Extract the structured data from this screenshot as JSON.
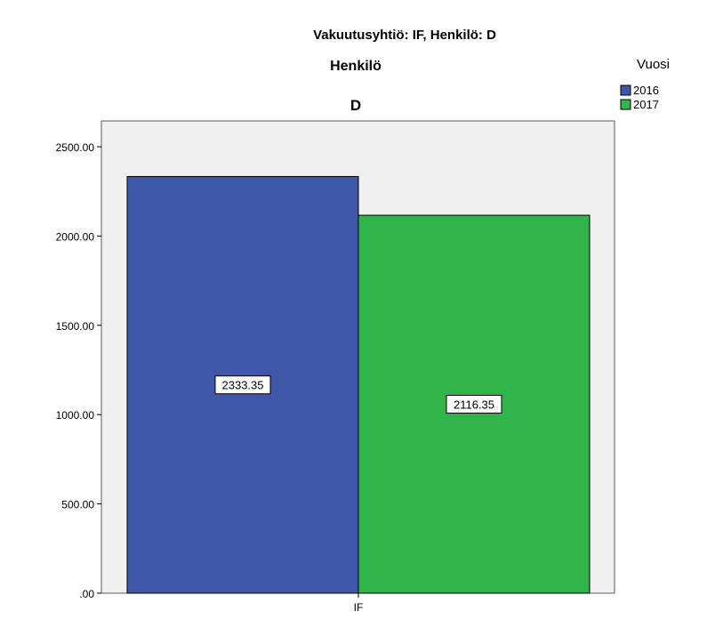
{
  "chart_data": {
    "type": "bar",
    "title": "Vakuutusyhtiö: IF, Henkilö: D",
    "subtitle": "Henkilö",
    "panel_label": "D",
    "categories": [
      "IF"
    ],
    "series": [
      {
        "name": "2016",
        "values": [
          2333.35
        ],
        "color": "#3f57a8"
      },
      {
        "name": "2017",
        "values": [
          2116.35
        ],
        "color": "#31b54a"
      }
    ],
    "data_labels": [
      "2333.35",
      "2116.35"
    ],
    "ylim": [
      0,
      2500
    ],
    "yticks": [
      ".00",
      "500.00",
      "1000.00",
      "1500.00",
      "2000.00",
      "2500.00"
    ],
    "ytick_values": [
      0,
      500,
      1000,
      1500,
      2000,
      2500
    ],
    "legend": {
      "title": "Vuosi",
      "position": "top-right"
    },
    "grid": false,
    "plot_background": "#f0f0f0"
  }
}
